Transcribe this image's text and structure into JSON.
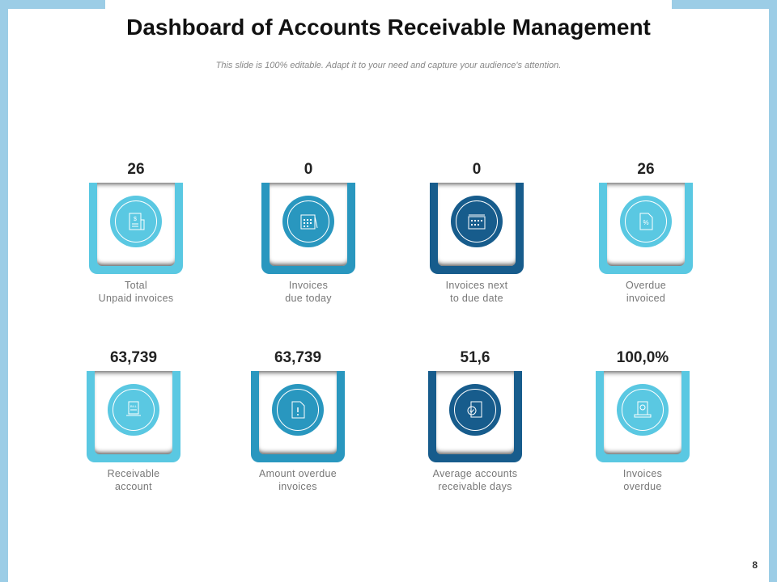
{
  "title": "Dashboard of Accounts Receivable Management",
  "subtitle": "This slide is 100% editable. Adapt it to your need and capture your audience's attention.",
  "page_number": "8",
  "colors": {
    "light": "#5ac8e2",
    "mid": "#2997bf",
    "dark": "#175c8c",
    "frame": "#9ccde6"
  },
  "kpis": [
    {
      "value": "26",
      "label": "Total\nUnpaid invoices",
      "icon": "receipt-dollar-icon",
      "color": "light"
    },
    {
      "value": "0",
      "label": "Invoices\ndue today",
      "icon": "calendar-icon",
      "color": "mid"
    },
    {
      "value": "0",
      "label": "Invoices next\nto due date",
      "icon": "calendar-timeline-icon",
      "color": "dark"
    },
    {
      "value": "26",
      "label": "Overdue\ninvoiced",
      "icon": "percent-document-icon",
      "color": "light"
    },
    {
      "value": "63,739",
      "label": "Receivable\naccount",
      "icon": "bill-laptop-icon",
      "color": "light"
    },
    {
      "value": "63,739",
      "label": "Amount overdue\ninvoices",
      "icon": "alert-document-icon",
      "color": "mid"
    },
    {
      "value": "51,6",
      "label": "Average accounts\nreceivable days",
      "icon": "checked-document-icon",
      "color": "dark"
    },
    {
      "value": "100,0%",
      "label": "Invoices\noverdue",
      "icon": "invoice-coin-icon",
      "color": "light"
    }
  ]
}
